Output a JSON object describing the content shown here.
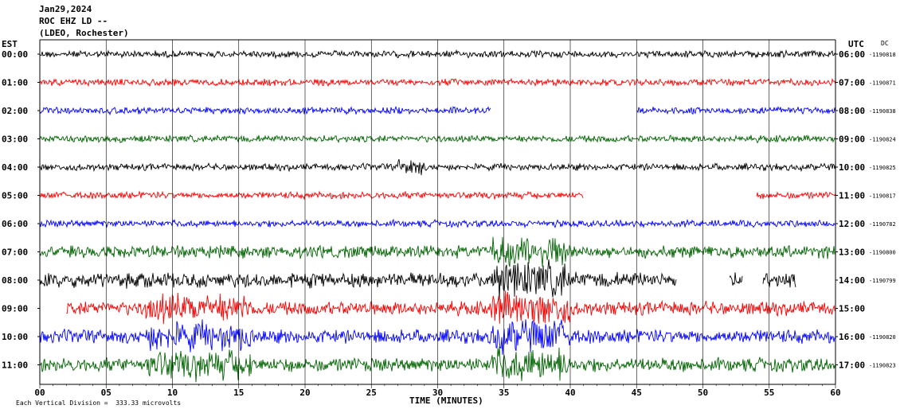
{
  "header": {
    "date": "Jan29,2024",
    "station": "ROC EHZ LD --",
    "network": "(LDEO, Rochester)"
  },
  "left_axis_label": "EST",
  "right_axis_label": "UTC",
  "dc_label": "DC",
  "xaxis_label": "TIME (MINUTES)",
  "footer_scale": "Each Vertical Division =  333.33 microvolts",
  "chart_data": {
    "type": "line",
    "title": "",
    "xlabel": "TIME (MINUTES)",
    "xlim": [
      0,
      60
    ],
    "x_ticks": [
      "00",
      "05",
      "10",
      "15",
      "20",
      "25",
      "30",
      "35",
      "40",
      "45",
      "50",
      "55",
      "60"
    ],
    "series": [
      {
        "est": "00:00",
        "utc": "06:00",
        "dc": "-1190818",
        "color": "#000000",
        "gaps": []
      },
      {
        "est": "01:00",
        "utc": "07:00",
        "dc": "-1190871",
        "color": "#ff0000",
        "gaps": []
      },
      {
        "est": "02:00",
        "utc": "08:00",
        "dc": "-1190838",
        "color": "#0000ff",
        "gaps": [
          [
            34,
            45
          ]
        ]
      },
      {
        "est": "03:00",
        "utc": "09:00",
        "dc": "-1190824",
        "color": "#006400",
        "gaps": []
      },
      {
        "est": "04:00",
        "utc": "10:00",
        "dc": "-1190825",
        "color": "#000000",
        "gaps": []
      },
      {
        "est": "05:00",
        "utc": "11:00",
        "dc": "-1190817",
        "color": "#ff0000",
        "gaps": [
          [
            41,
            54
          ]
        ]
      },
      {
        "est": "06:00",
        "utc": "12:00",
        "dc": "-1190782",
        "color": "#0000ff",
        "gaps": []
      },
      {
        "est": "07:00",
        "utc": "13:00",
        "dc": "-1190800",
        "color": "#006400",
        "gaps": []
      },
      {
        "est": "08:00",
        "utc": "14:00",
        "dc": "-1190799",
        "color": "#000000",
        "gaps": [
          [
            48,
            52
          ],
          [
            53,
            54.5
          ]
        ],
        "end": 57
      },
      {
        "est": "09:00",
        "utc": "15:00",
        "dc": "",
        "color": "#ff0000",
        "gaps": [],
        "start": 2
      },
      {
        "est": "10:00",
        "utc": "16:00",
        "dc": "-1190820",
        "color": "#0000ff",
        "gaps": []
      },
      {
        "est": "11:00",
        "utc": "17:00",
        "dc": "-1190823",
        "color": "#006400",
        "gaps": []
      }
    ]
  }
}
